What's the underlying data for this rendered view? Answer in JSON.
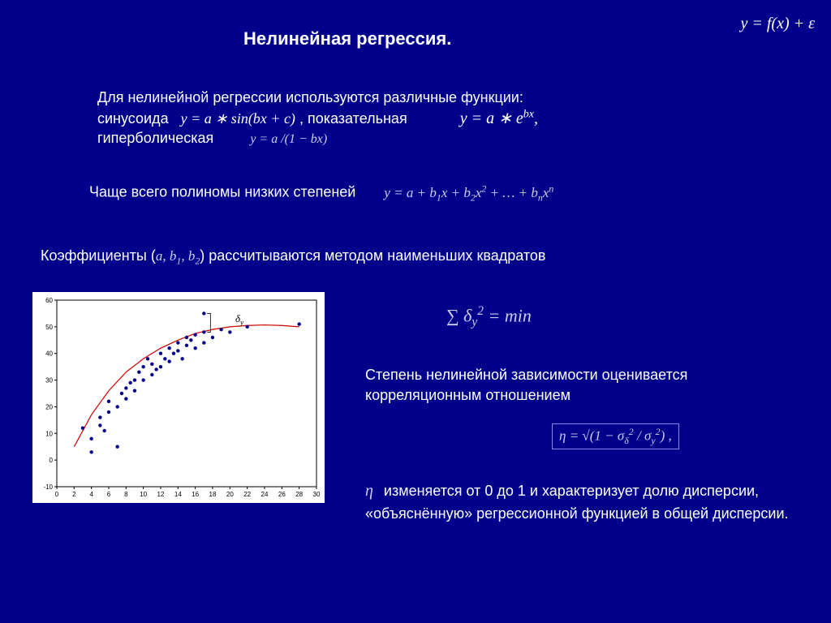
{
  "title": "Нелинейная регрессия.",
  "top_formula": "y = f(x) + ε",
  "line1_a": "Для нелинейной регрессии используются различные функции:",
  "line2_sin_label": "синусоида",
  "line2_sin_formula": "y = a ∗ sin(bx + c)",
  "line2_exp_label": ", показательная",
  "line2_exp_formula_html": "y = a ∗ e<sup>bx</sup>,",
  "line3_label": "гиперболическая",
  "line3_formula": "y = a /(1 − bx)",
  "poly_label": "Чаще всего полиномы низких степеней",
  "poly_formula_html": "y = a + b<sub>1</sub>x + b<sub>2</sub>x<sup>2</sup> + … + b<sub>n</sub>x<sup>n</sup>",
  "coef_prefix": "Коэффициенты (",
  "coef_formula_html": "a, b<sub>1</sub>, b<sub>2</sub>",
  "coef_suffix": ") рассчитываются методом наименьших квадратов",
  "sum_formula_html": "∑ δ<sub>y</sub><sup>2</sup> = min",
  "corr_text": "Степень нелинейной зависимости оценивается корреляционным отношением",
  "eta_formula_html": "η = √(1 − σ<sub>δ</sub><sup>2</sup> / σ<sub>y</sub><sup>2</sup>) ,",
  "eta_symbol": "η",
  "eta_text": " изменяется от 0 до 1 и характеризует долю дисперсии, «объяснённую» регрессионной функцией в общей дисперсии.",
  "delta_y_label_html": "δ<sub>y</sub>",
  "chart": {
    "type": "scatter+curve",
    "bg": "#ffffff",
    "axis_color": "#000000",
    "point_color": "#000088",
    "curve_color": "#cc0000",
    "tick_font": "8",
    "xlim": [
      0,
      30
    ],
    "ylim": [
      -10,
      60
    ],
    "xticks": [
      0,
      2,
      4,
      6,
      8,
      10,
      12,
      14,
      16,
      18,
      20,
      22,
      24,
      26,
      28,
      30
    ],
    "yticks": [
      -10,
      0,
      10,
      20,
      30,
      40,
      50,
      60
    ],
    "points": [
      [
        3,
        12
      ],
      [
        4,
        3
      ],
      [
        4,
        8
      ],
      [
        5,
        13
      ],
      [
        5,
        16
      ],
      [
        5.5,
        11
      ],
      [
        6,
        18
      ],
      [
        6,
        22
      ],
      [
        7,
        5
      ],
      [
        7,
        20
      ],
      [
        7.5,
        25
      ],
      [
        8,
        27
      ],
      [
        8,
        23
      ],
      [
        8.5,
        29
      ],
      [
        9,
        30
      ],
      [
        9,
        26
      ],
      [
        9.5,
        33
      ],
      [
        10,
        30
      ],
      [
        10,
        35
      ],
      [
        10.5,
        38
      ],
      [
        11,
        32
      ],
      [
        11,
        36
      ],
      [
        11.5,
        34
      ],
      [
        12,
        40
      ],
      [
        12,
        35
      ],
      [
        12.5,
        38
      ],
      [
        13,
        42
      ],
      [
        13,
        37
      ],
      [
        13.5,
        40
      ],
      [
        14,
        44
      ],
      [
        14,
        41
      ],
      [
        14.5,
        38
      ],
      [
        15,
        46
      ],
      [
        15,
        43
      ],
      [
        15.5,
        45
      ],
      [
        16,
        47
      ],
      [
        16,
        42
      ],
      [
        17,
        48
      ],
      [
        17,
        44
      ],
      [
        17,
        55
      ],
      [
        18,
        46
      ],
      [
        19,
        49
      ],
      [
        20,
        48
      ],
      [
        22,
        50
      ],
      [
        28,
        51
      ]
    ],
    "curve": [
      [
        2,
        5
      ],
      [
        4,
        17
      ],
      [
        6,
        26
      ],
      [
        8,
        33
      ],
      [
        10,
        38
      ],
      [
        12,
        42
      ],
      [
        14,
        45
      ],
      [
        16,
        47.5
      ],
      [
        18,
        49
      ],
      [
        20,
        50
      ],
      [
        22,
        50.5
      ],
      [
        24,
        50.7
      ],
      [
        26,
        50.5
      ],
      [
        28,
        50
      ]
    ]
  }
}
